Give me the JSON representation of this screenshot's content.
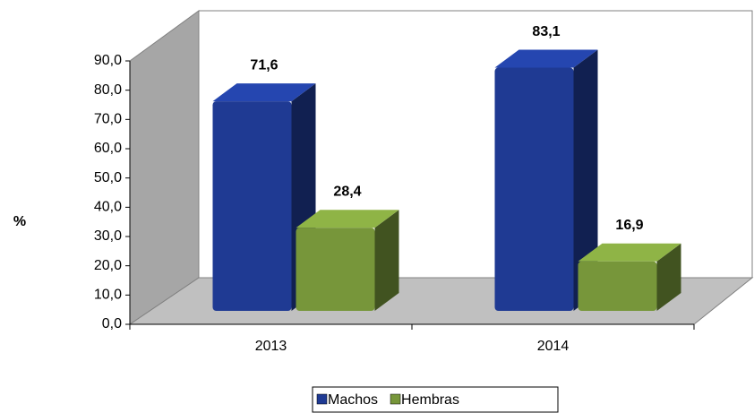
{
  "chart_data": {
    "type": "bar3d",
    "ylabel": "%",
    "categories": [
      "2013",
      "2014"
    ],
    "series": [
      {
        "name": "Machos",
        "color": "#1f3a93",
        "values": [
          71.6,
          83.1
        ],
        "value_labels": [
          "71,6",
          "83,1"
        ]
      },
      {
        "name": "Hembras",
        "color": "#77963a",
        "values": [
          28.4,
          16.9
        ],
        "value_labels": [
          "28,4",
          "16,9"
        ]
      }
    ],
    "ylim": [
      0,
      90
    ],
    "yticks": [
      {
        "value": 0,
        "label": "0,0"
      },
      {
        "value": 10,
        "label": "10,0"
      },
      {
        "value": 20,
        "label": "20,0"
      },
      {
        "value": 30,
        "label": "30,0"
      },
      {
        "value": 40,
        "label": "40,0"
      },
      {
        "value": 50,
        "label": "50,0"
      },
      {
        "value": 60,
        "label": "60,0"
      },
      {
        "value": 70,
        "label": "70,0"
      },
      {
        "value": 80,
        "label": "80,0"
      },
      {
        "value": 90,
        "label": "90,0"
      }
    ],
    "grid": false,
    "legend": "bottom"
  }
}
